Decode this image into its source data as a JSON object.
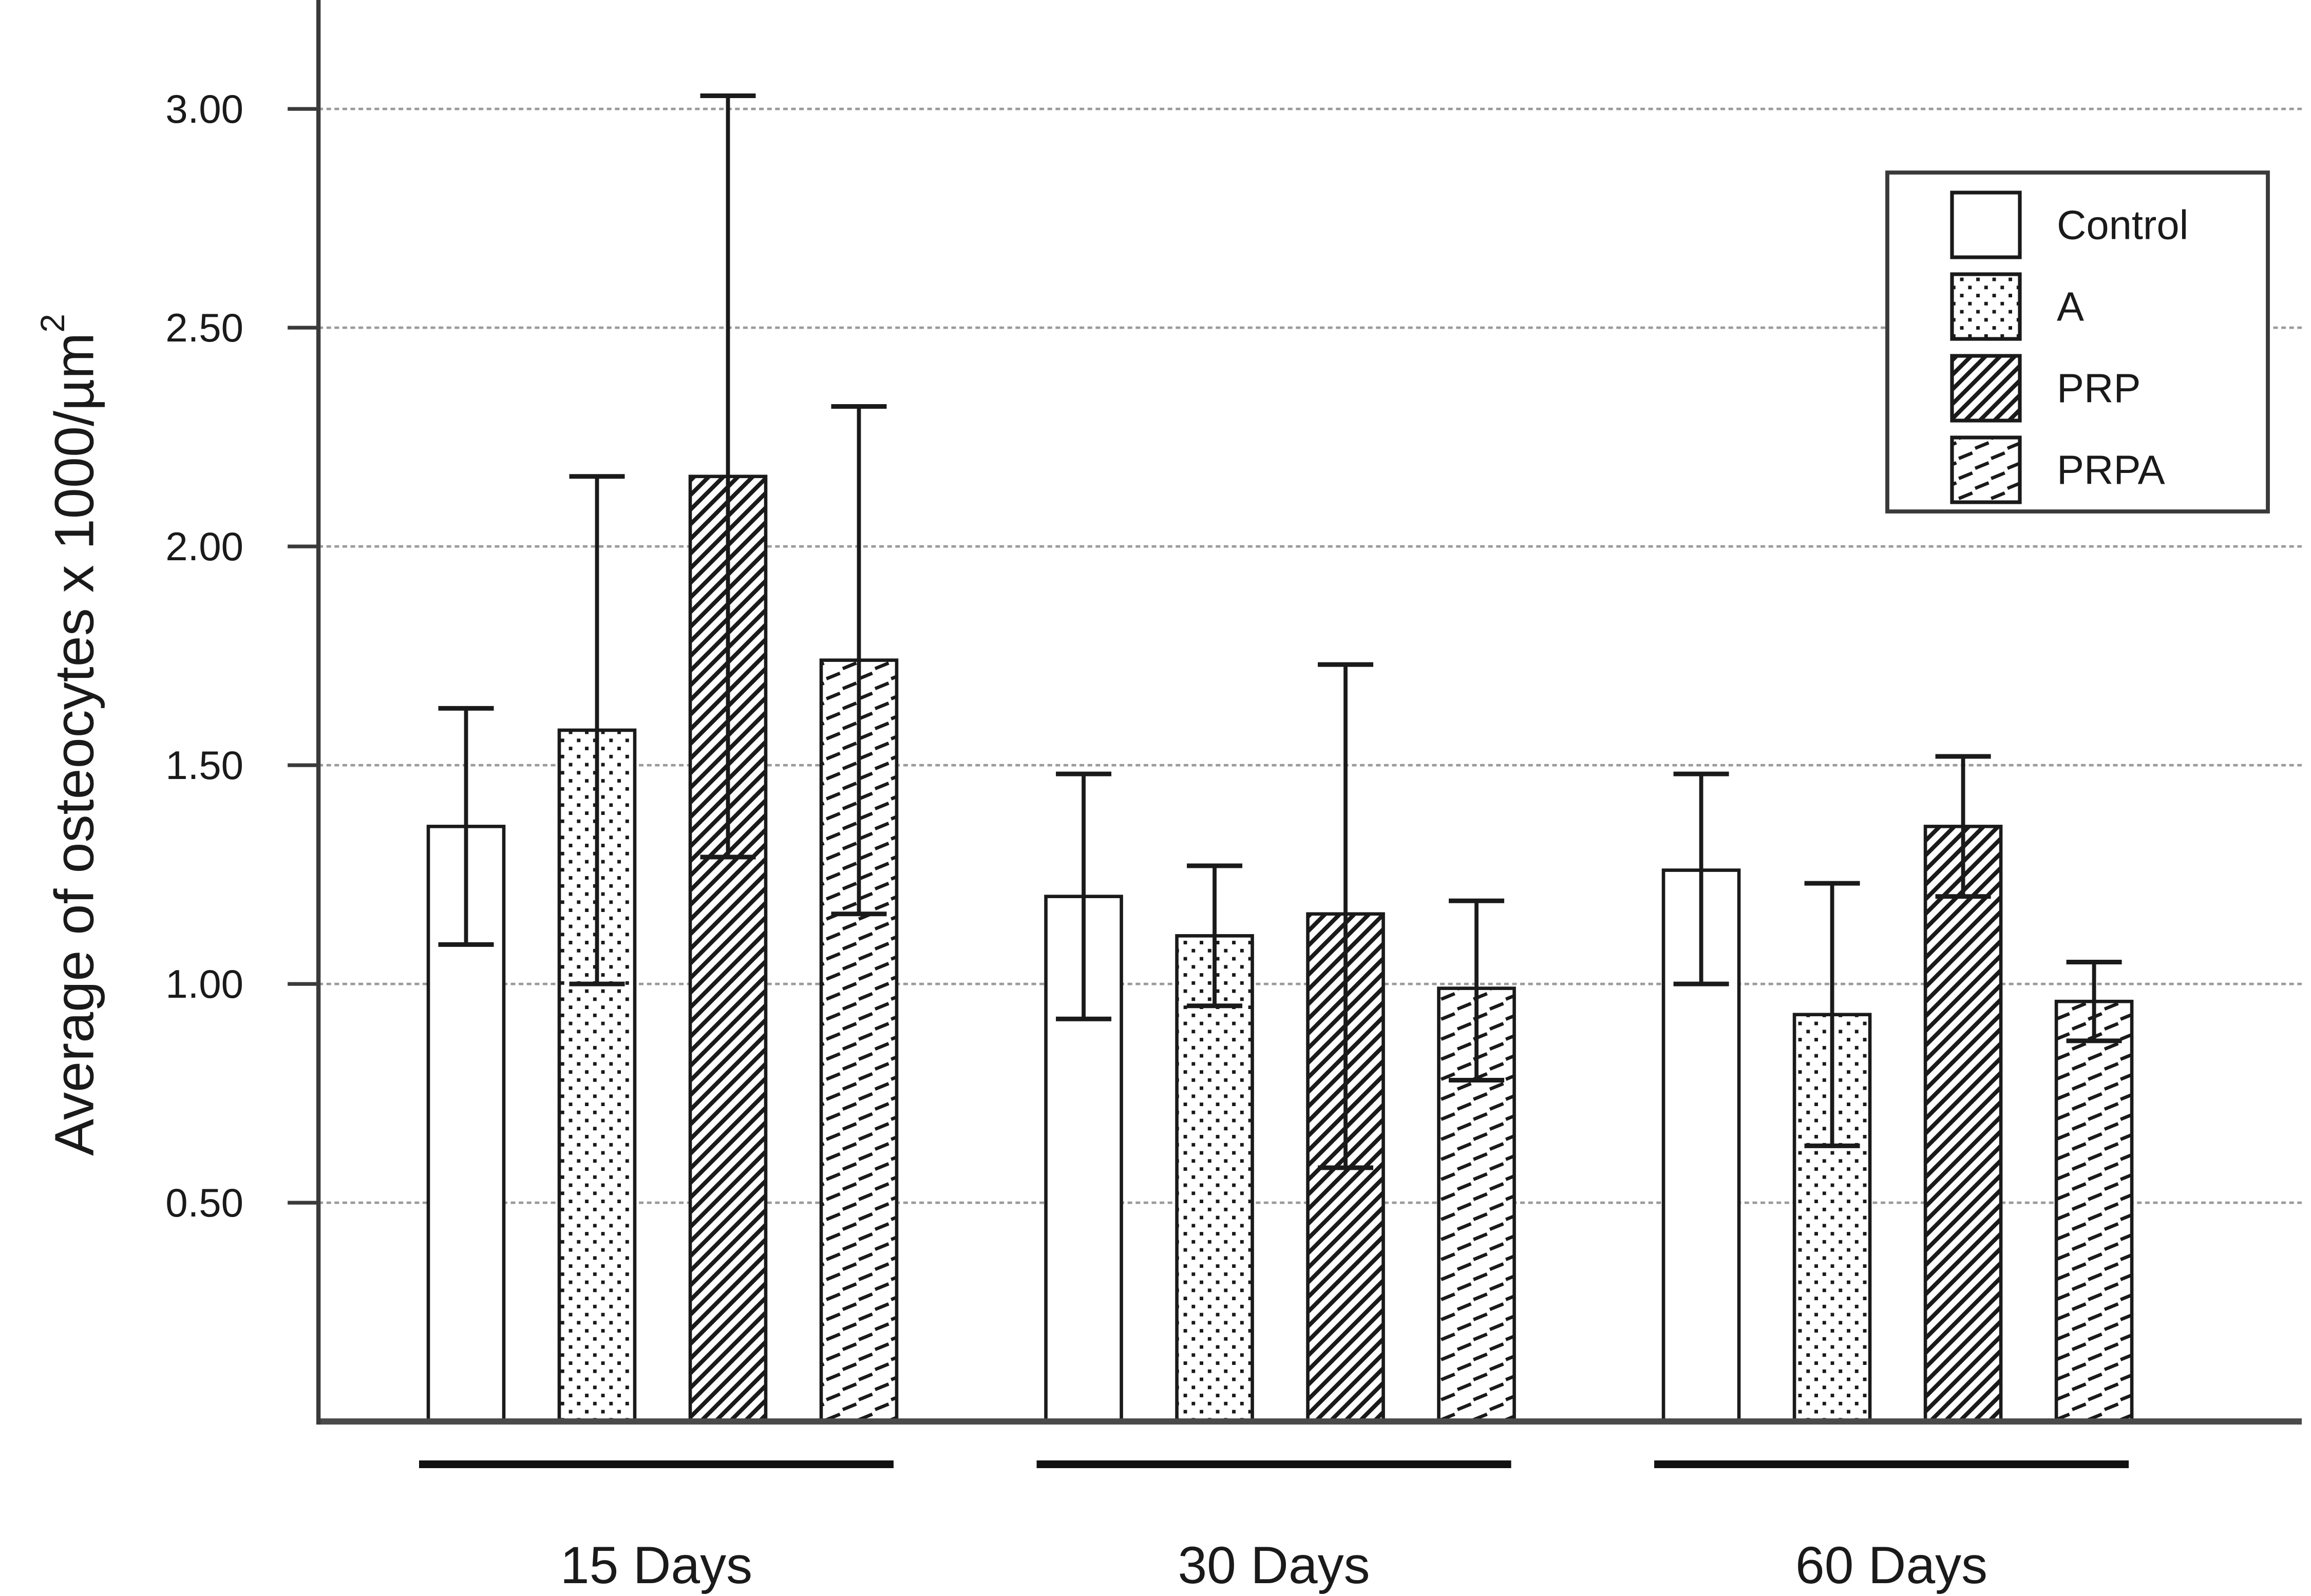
{
  "figure": {
    "background": "#ffffff",
    "ink_color": "#1a1a1a",
    "grid_color": "#9a9a9a",
    "axis_color": "#3a3a3a",
    "baseline_color": "#4a4a4a"
  },
  "chart_data": {
    "type": "bar",
    "title": "",
    "xlabel": "",
    "ylabel": "Average of osteocytes x 1000/µm",
    "ylabel_superscript": "2",
    "ylim": [
      0,
      3.25
    ],
    "grid": "horizontal dotted gray gridlines every 0.50, on",
    "legend_position": "top-right boxed",
    "yticks": [
      {
        "value": 3.0,
        "label": "3.00"
      },
      {
        "value": 2.5,
        "label": "2.50"
      },
      {
        "value": 2.0,
        "label": "2.00"
      },
      {
        "value": 1.5,
        "label": "1.50"
      },
      {
        "value": 1.0,
        "label": "1.00"
      },
      {
        "value": 0.5,
        "label": "0.50"
      }
    ],
    "categories": [
      "15 Days",
      "30 Days",
      "60 Days"
    ],
    "series": [
      {
        "name": "Control",
        "pattern": "plain",
        "values": [
          1.36,
          1.2,
          1.26
        ],
        "err_lower": [
          1.09,
          0.92,
          1.0
        ],
        "err_upper": [
          1.63,
          1.48,
          1.48
        ]
      },
      {
        "name": "A",
        "pattern": "dots",
        "values": [
          1.58,
          1.11,
          0.93
        ],
        "err_lower": [
          1.0,
          0.95,
          0.63
        ],
        "err_upper": [
          2.16,
          1.27,
          1.23
        ]
      },
      {
        "name": "PRP",
        "pattern": "diagonal-hatch",
        "values": [
          2.16,
          1.16,
          1.36
        ],
        "err_lower": [
          1.29,
          0.58,
          1.2
        ],
        "err_upper": [
          3.03,
          1.73,
          1.52
        ]
      },
      {
        "name": "PRPA",
        "pattern": "dash-hatch",
        "values": [
          1.74,
          0.99,
          0.96
        ],
        "err_lower": [
          1.16,
          0.78,
          0.87
        ],
        "err_upper": [
          2.32,
          1.19,
          1.05
        ]
      }
    ]
  },
  "legend": {
    "entries": [
      {
        "label": "Control",
        "swatch": "plain"
      },
      {
        "label": "A",
        "swatch": "dots"
      },
      {
        "label": "PRP",
        "swatch": "diagonal-hatch"
      },
      {
        "label": "PRPA",
        "swatch": "dash-hatch"
      }
    ]
  }
}
